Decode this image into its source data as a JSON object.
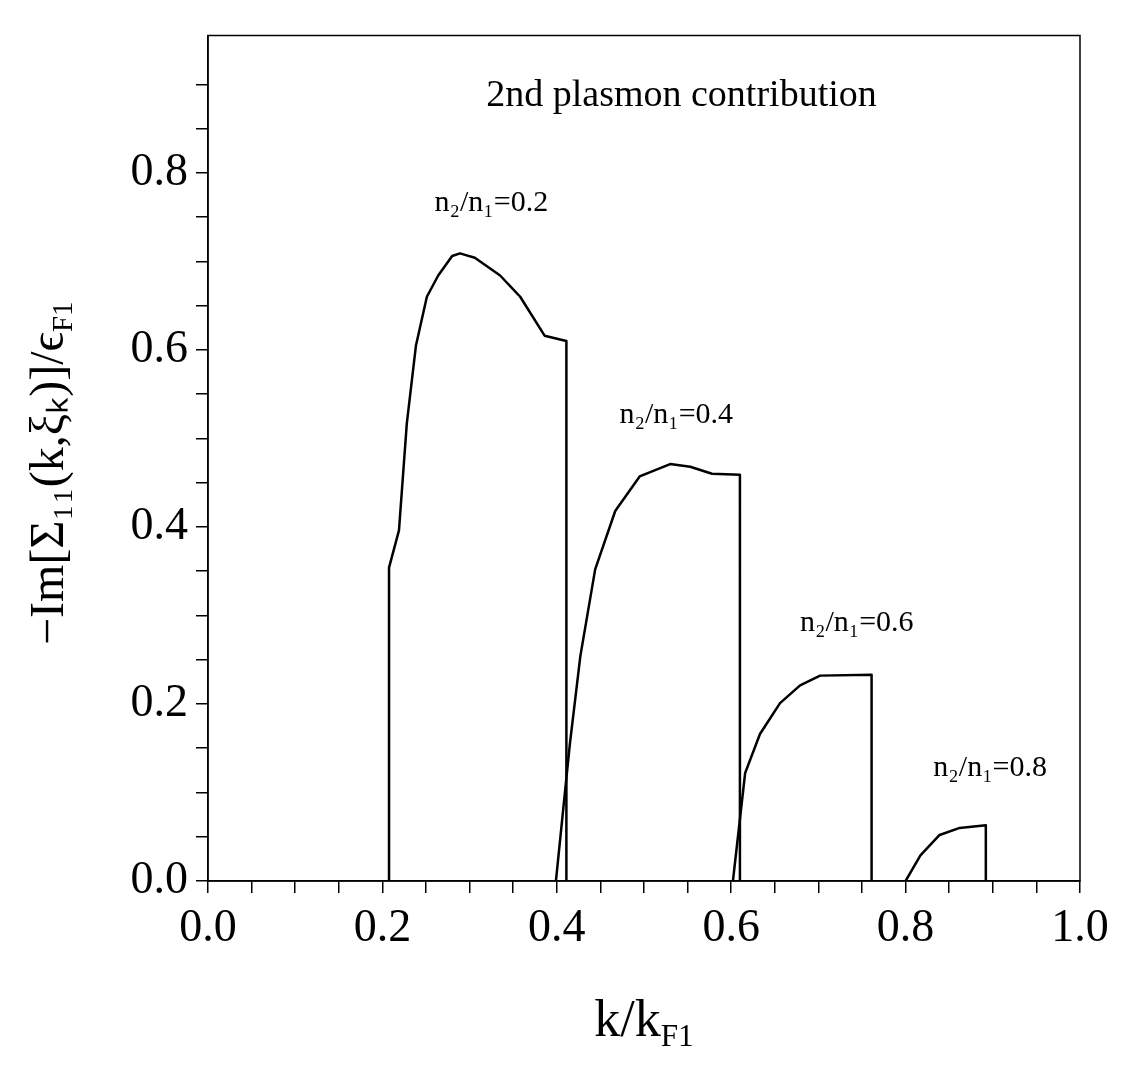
{
  "chart_data": {
    "type": "line",
    "title": "2nd plasmon contribution",
    "xlabel": "k/k$_{F1}$",
    "ylabel": "−Im[Σ₁₁(k,ξₖ)]/ϵ$_{F1}$",
    "series": [
      {
        "color": "#000000",
        "x": [
          0.2076,
          0.2076,
          0.219,
          0.228,
          0.2385,
          0.251,
          0.264,
          0.28,
          0.289,
          0.306,
          0.335,
          0.358,
          0.386,
          0.411,
          0.411
        ],
        "values": [
          0,
          0.354,
          0.396,
          0.517,
          0.605,
          0.66,
          0.684,
          0.706,
          0.709,
          0.704,
          0.684,
          0.66,
          0.616,
          0.61,
          0
        ]
      },
      {
        "color": "#000000",
        "x": [
          0.399,
          0.415,
          0.427,
          0.444,
          0.467,
          0.495,
          0.53,
          0.553,
          0.578,
          0.61,
          0.61
        ],
        "values": [
          0,
          0.155,
          0.254,
          0.352,
          0.418,
          0.457,
          0.471,
          0.468,
          0.46,
          0.459,
          0
        ]
      },
      {
        "color": "#000000",
        "x": [
          0.602,
          0.616,
          0.633,
          0.656,
          0.679,
          0.702,
          0.761,
          0.761
        ],
        "values": [
          0,
          0.122,
          0.166,
          0.201,
          0.221,
          0.232,
          0.233,
          0
        ]
      },
      {
        "color": "#000000",
        "x": [
          0.8,
          0.817,
          0.839,
          0.862,
          0.892,
          0.892
        ],
        "values": [
          0,
          0.029,
          0.052,
          0.06,
          0.063,
          0
        ]
      }
    ],
    "annotations": [
      "n₂/n₁=0.2",
      "n₂/n₁=0.4",
      "n₂/n₁=0.6",
      "n₂/n₁=0.8"
    ],
    "xlim": [
      0,
      1
    ],
    "ylim": [
      0,
      0.955
    ],
    "xticks": [
      {
        "value": 0,
        "label": "0.0"
      },
      {
        "value": 0.05,
        "label": null
      },
      {
        "value": 0.1,
        "label": null
      },
      {
        "value": 0.15,
        "label": null
      },
      {
        "value": 0.2,
        "label": "0.2"
      },
      {
        "value": 0.25,
        "label": null
      },
      {
        "value": 0.3,
        "label": null
      },
      {
        "value": 0.35,
        "label": null
      },
      {
        "value": 0.4,
        "label": "0.4"
      },
      {
        "value": 0.45,
        "label": null
      },
      {
        "value": 0.5,
        "label": null
      },
      {
        "value": 0.55,
        "label": null
      },
      {
        "value": 0.6,
        "label": "0.6"
      },
      {
        "value": 0.65,
        "label": null
      },
      {
        "value": 0.7,
        "label": null
      },
      {
        "value": 0.75,
        "label": null
      },
      {
        "value": 0.8,
        "label": "0.8"
      },
      {
        "value": 0.85,
        "label": null
      },
      {
        "value": 0.9,
        "label": null
      },
      {
        "value": 0.95,
        "label": null
      },
      {
        "value": 1,
        "label": "1.0"
      }
    ],
    "yticks": [
      {
        "value": 0,
        "label": "0.0"
      },
      {
        "value": 0.05,
        "label": null
      },
      {
        "value": 0.1,
        "label": null
      },
      {
        "value": 0.15,
        "label": null
      },
      {
        "value": 0.2,
        "label": "0.2"
      },
      {
        "value": 0.25,
        "label": null
      },
      {
        "value": 0.3,
        "label": null
      },
      {
        "value": 0.35,
        "label": null
      },
      {
        "value": 0.4,
        "label": "0.4"
      },
      {
        "value": 0.45,
        "label": null
      },
      {
        "value": 0.5,
        "label": null
      },
      {
        "value": 0.55,
        "label": null
      },
      {
        "value": 0.6,
        "label": "0.6"
      },
      {
        "value": 0.65,
        "label": null
      },
      {
        "value": 0.7,
        "label": null
      },
      {
        "value": 0.75,
        "label": null
      },
      {
        "value": 0.8,
        "label": "0.8"
      },
      {
        "value": 0.85,
        "label": null
      },
      {
        "value": 0.9,
        "label": null
      }
    ],
    "grid": false,
    "legend": false,
    "marker": "none",
    "line_style": "solid"
  }
}
